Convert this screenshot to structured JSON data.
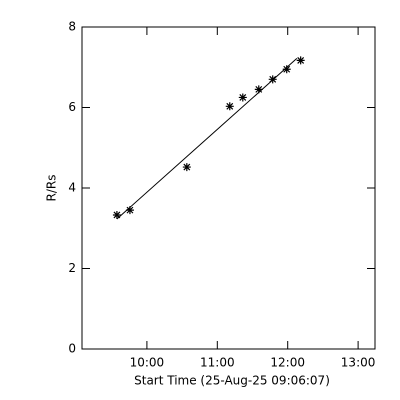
{
  "chart_data": {
    "type": "scatter",
    "xlabel": "Start Time (25-Aug-25 09:06:07)",
    "ylabel": "R/Rs",
    "x": [
      9.574,
      9.759,
      10.567,
      11.177,
      11.362,
      11.589,
      11.787,
      11.986,
      12.184
    ],
    "values": [
      3.33,
      3.45,
      4.52,
      6.03,
      6.25,
      6.45,
      6.7,
      6.95,
      7.17
    ],
    "color": "#000000",
    "fit_line": {
      "x": [
        9.574,
        12.13
      ],
      "values": [
        3.23,
        7.22
      ]
    },
    "xlim": [
      9.078,
      13.24
    ],
    "xticks": [
      {
        "value": 10,
        "label": "10:00"
      },
      {
        "value": 11,
        "label": "11:00"
      },
      {
        "value": 12,
        "label": "12:00"
      },
      {
        "value": 13,
        "label": "13:00"
      }
    ],
    "ylim": [
      0,
      8
    ],
    "yticks": [
      0,
      2,
      4,
      6,
      8
    ]
  }
}
